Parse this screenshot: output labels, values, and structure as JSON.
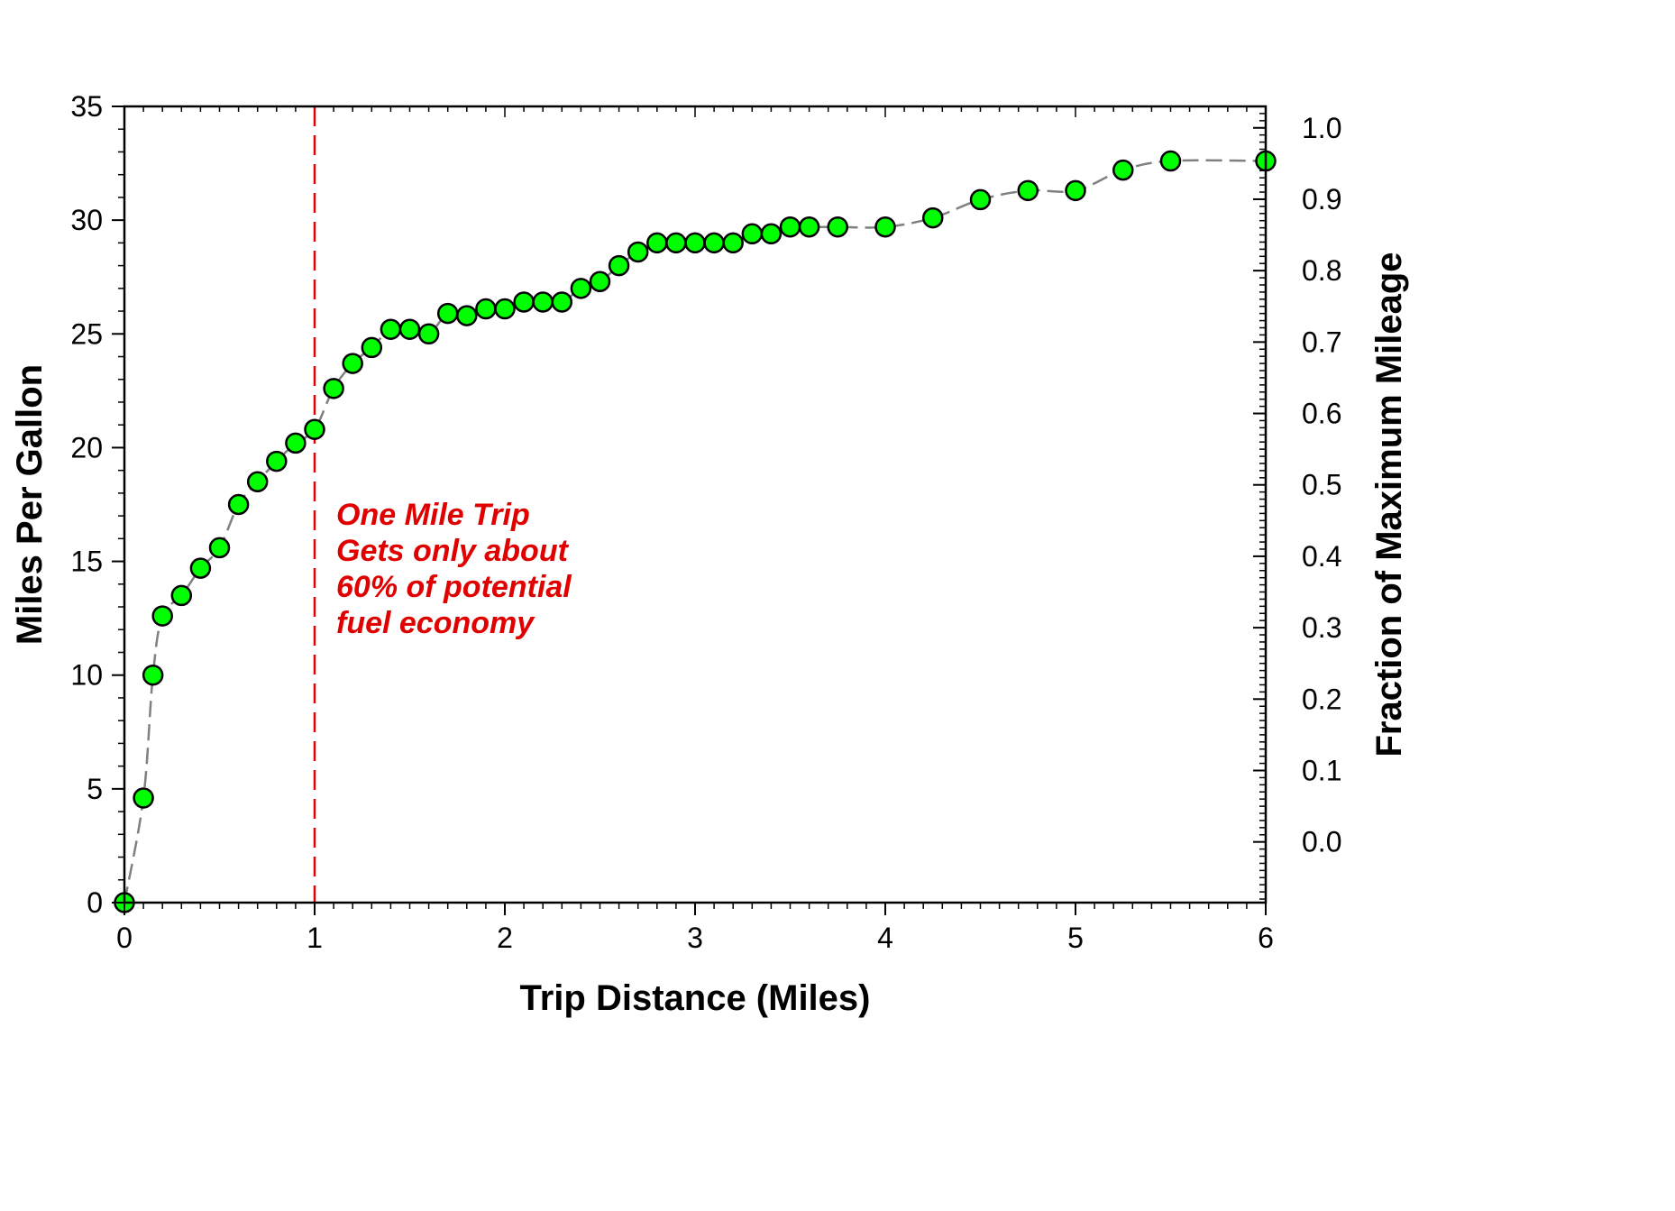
{
  "chart_data": {
    "type": "scatter",
    "title": "",
    "xlabel": "Trip Distance (Miles)",
    "ylabel": "Miles Per Gallon",
    "y2label": "Fraction of Maximum Mileage",
    "xlim": [
      0,
      6
    ],
    "ylim": [
      0,
      35
    ],
    "y2lim": [
      -0.085,
      1.03
    ],
    "x_ticks": [
      0,
      1,
      2,
      3,
      4,
      5,
      6
    ],
    "y_ticks": [
      0,
      5,
      10,
      15,
      20,
      25,
      30,
      35
    ],
    "y2_ticks": [
      "0.0",
      "0.1",
      "0.2",
      "0.3",
      "0.4",
      "0.5",
      "0.6",
      "0.7",
      "0.8",
      "0.9",
      "1.0"
    ],
    "grid": false,
    "legend": "none",
    "colors": {
      "marker_fill": "#00ff00",
      "marker_edge": "#000000",
      "curve": "#808080",
      "reference_line": "#e00000",
      "annotation": "#e00000"
    },
    "reference_line": {
      "x": 1
    },
    "annotation": {
      "lines": [
        "One Mile Trip",
        "Gets only about",
        "60% of potential",
        "fuel economy"
      ]
    },
    "series": [
      {
        "x": [
          0,
          0.1,
          0.15,
          0.2,
          0.3,
          0.4,
          0.5,
          0.6,
          0.7,
          0.8,
          0.9,
          1.0,
          1.1,
          1.2,
          1.3,
          1.4,
          1.5,
          1.6,
          1.7,
          1.8,
          1.9,
          2.0,
          2.1,
          2.2,
          2.3,
          2.4,
          2.5,
          2.6,
          2.7,
          2.8,
          2.9,
          3.0,
          3.1,
          3.2,
          3.3,
          3.4,
          3.5,
          3.6,
          3.75,
          4.0,
          4.25,
          4.5,
          4.75,
          5.0,
          5.25,
          5.5,
          6.0
        ],
        "y": [
          0,
          4.6,
          10.0,
          12.6,
          13.5,
          14.7,
          15.6,
          17.5,
          18.5,
          19.4,
          20.2,
          20.8,
          22.6,
          23.7,
          24.4,
          25.2,
          25.2,
          25.0,
          25.9,
          25.8,
          26.1,
          26.1,
          26.4,
          26.4,
          26.4,
          27.0,
          27.3,
          28.0,
          28.6,
          29.0,
          29.0,
          29.0,
          29.0,
          29.0,
          29.4,
          29.4,
          29.7,
          29.7,
          29.7,
          29.7,
          30.1,
          30.9,
          31.3,
          31.3,
          32.2,
          32.6,
          32.6
        ]
      }
    ]
  }
}
